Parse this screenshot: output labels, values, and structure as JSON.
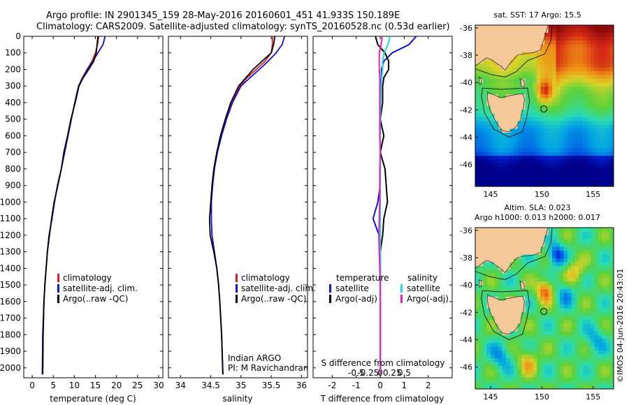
{
  "header": {
    "line1": "Argo profile: IN 2901345_159 28-May-2016 20160601_451 41.933S 150.189E",
    "line2": "Climatology: CARS2009. Satellite-adjusted climatology: synTS_20160528.nc (0.53d earlier)"
  },
  "colors": {
    "climatology": "#e02020",
    "satellite": "#1010e0",
    "argo": "#000000",
    "satellite_cyan": "#20d8e0",
    "argo_magenta": "#e020c0",
    "land": "#f5c89a"
  },
  "depth_axis": {
    "ticks": [
      0,
      100,
      200,
      300,
      400,
      500,
      600,
      700,
      800,
      900,
      1000,
      1100,
      1200,
      1300,
      1400,
      1500,
      1600,
      1700,
      1800,
      1900,
      2000
    ],
    "range": [
      0,
      2060
    ]
  },
  "panels": {
    "temperature": {
      "xlabel": "temperature (deg C)",
      "xticks": [
        0,
        5,
        10,
        15,
        20,
        25,
        30
      ],
      "legend": [
        "climatology",
        "satellite-adj. clim.",
        "Argo(..raw -QC)"
      ]
    },
    "salinity": {
      "xlabel": "salinity",
      "xticks": [
        34,
        34.5,
        35,
        35.5,
        36
      ],
      "legend": [
        "climatology",
        "satellite-adj. clim.",
        "Argo(..raw -QC)"
      ],
      "note1": "Indian ARGO",
      "note2": "PI: M Ravichandran"
    },
    "difference": {
      "xlabel": "T difference from climatology",
      "s_label": "S difference from climatology",
      "t_ticks": [
        -2,
        -1,
        0,
        1,
        2
      ],
      "s_ticks": [
        "-0.5",
        "-0.25",
        "0",
        "0.25",
        "0.5"
      ],
      "legend_temperature_title": "temperature",
      "legend_salinity_title": "salinity",
      "legend_temperature": [
        "satellite",
        "Argo(-adj)"
      ],
      "legend_salinity": [
        "satellite",
        "Argo(-adj)"
      ]
    }
  },
  "maps": {
    "sst": {
      "title": "sat. SST: 17 Argo: 15.5",
      "lat_ticks": [
        "-36",
        "-38",
        "-40",
        "-42",
        "-44",
        "-46"
      ],
      "lon_ticks": [
        "145",
        "150",
        "155"
      ]
    },
    "sla": {
      "title1": "Altim. SLA: 0.023",
      "title2": "Argo h1000: 0.013 h2000: 0.017",
      "lat_ticks": [
        "-36",
        "-38",
        "-40",
        "-42",
        "-44",
        "-46"
      ],
      "lon_ticks": [
        "145",
        "150",
        "155"
      ]
    },
    "float_position": {
      "lon": 150.189,
      "lat": -41.933
    }
  },
  "credit": "©IMOS 04-Jun-2016 20:43:01",
  "chart_data": [
    {
      "type": "line",
      "title": "",
      "xlabel": "temperature (deg C)",
      "ylabel": "",
      "xlim": [
        -2,
        31
      ],
      "ylim": [
        2060,
        0
      ],
      "series": [
        {
          "name": "climatology",
          "x": [
            15.8,
            15.5,
            15.0,
            14.2,
            13.0,
            11.9,
            11.0,
            10.1,
            9.3,
            8.5,
            7.7,
            6.9,
            6.0,
            5.3,
            4.7,
            4.0,
            3.6,
            3.3,
            3.0,
            2.8,
            2.6,
            2.5
          ],
          "y": [
            0,
            50,
            100,
            150,
            200,
            250,
            300,
            400,
            500,
            600,
            700,
            800,
            900,
            1000,
            1100,
            1200,
            1300,
            1400,
            1500,
            1600,
            1800,
            2040
          ]
        },
        {
          "name": "satellite-adj. clim.",
          "x": [
            17.3,
            16.8,
            15.6,
            14.4,
            13.1,
            12.0,
            11.0,
            10.1,
            9.3,
            8.5,
            7.7,
            6.9,
            6.0,
            5.3,
            4.7,
            4.0,
            3.6,
            3.3,
            3.0,
            2.8,
            2.5,
            2.4
          ],
          "y": [
            0,
            50,
            100,
            150,
            200,
            250,
            300,
            400,
            500,
            600,
            700,
            800,
            900,
            1000,
            1100,
            1200,
            1300,
            1400,
            1500,
            1600,
            1800,
            2040
          ]
        },
        {
          "name": "Argo(..raw -QC)",
          "x": [
            15.6,
            15.4,
            15.2,
            14.6,
            13.4,
            12.1,
            11.1,
            10.2,
            9.2,
            8.4,
            7.5,
            6.9,
            6.1,
            5.2,
            4.6,
            4.1,
            3.6,
            3.3,
            3.0,
            2.8,
            2.6,
            2.5
          ],
          "y": [
            0,
            50,
            100,
            150,
            200,
            250,
            300,
            400,
            500,
            600,
            700,
            800,
            900,
            1000,
            1100,
            1200,
            1300,
            1400,
            1500,
            1600,
            1800,
            2040
          ]
        }
      ]
    },
    {
      "type": "line",
      "title": "",
      "xlabel": "salinity",
      "ylabel": "",
      "xlim": [
        33.8,
        36.1
      ],
      "ylim": [
        2060,
        0
      ],
      "series": [
        {
          "name": "climatology",
          "x": [
            35.52,
            35.52,
            35.5,
            35.4,
            35.25,
            35.1,
            34.98,
            34.85,
            34.75,
            34.67,
            34.6,
            34.56,
            34.53,
            34.51,
            34.51,
            34.52,
            34.56,
            34.6,
            34.63,
            34.65,
            34.68,
            34.7
          ],
          "y": [
            0,
            50,
            100,
            150,
            200,
            250,
            300,
            400,
            500,
            600,
            700,
            800,
            900,
            1000,
            1100,
            1200,
            1300,
            1400,
            1500,
            1600,
            1800,
            2040
          ]
        },
        {
          "name": "satellite-adj. clim.",
          "x": [
            35.72,
            35.68,
            35.58,
            35.45,
            35.3,
            35.15,
            35.0,
            34.86,
            34.76,
            34.68,
            34.61,
            34.56,
            34.53,
            34.51,
            34.51,
            34.52,
            34.56,
            34.6,
            34.63,
            34.65,
            34.68,
            34.7
          ],
          "y": [
            0,
            50,
            100,
            150,
            200,
            250,
            300,
            400,
            500,
            600,
            700,
            800,
            900,
            1000,
            1100,
            1200,
            1300,
            1400,
            1500,
            1600,
            1800,
            2040
          ]
        },
        {
          "name": "Argo(..raw -QC)",
          "x": [
            35.56,
            35.54,
            35.5,
            35.35,
            35.2,
            35.08,
            34.96,
            34.83,
            34.74,
            34.66,
            34.6,
            34.55,
            34.52,
            34.5,
            34.48,
            34.49,
            34.55,
            34.6,
            34.63,
            34.65,
            34.68,
            34.7
          ],
          "y": [
            0,
            50,
            100,
            150,
            200,
            250,
            300,
            400,
            500,
            600,
            700,
            800,
            900,
            1000,
            1100,
            1200,
            1300,
            1400,
            1500,
            1600,
            1800,
            2040
          ]
        }
      ]
    },
    {
      "type": "line",
      "title": "",
      "xlabel": "T difference from climatology",
      "ylabel": "",
      "xlim": [
        -2.8,
        3.0
      ],
      "ylim": [
        2060,
        0
      ],
      "series": [
        {
          "name": "temperature satellite",
          "x": [
            1.5,
            1.2,
            0.5,
            0.15,
            0.05,
            0.05,
            0,
            0,
            0,
            0,
            0,
            0,
            0,
            -0.1,
            -0.3,
            -0.05,
            0,
            0,
            0,
            0,
            0,
            0
          ],
          "y": [
            0,
            50,
            100,
            150,
            200,
            250,
            300,
            400,
            500,
            600,
            700,
            800,
            900,
            1000,
            1100,
            1200,
            1300,
            1400,
            1500,
            1600,
            1800,
            2040
          ]
        },
        {
          "name": "temperature Argo(-adj)",
          "x": [
            -0.2,
            -0.1,
            0.2,
            0.35,
            0.35,
            0.15,
            0.1,
            0.1,
            0,
            0.15,
            0,
            0.2,
            0.25,
            0.3,
            0.15,
            0.1,
            0,
            0,
            0,
            0,
            0,
            0
          ],
          "y": [
            0,
            50,
            100,
            150,
            200,
            250,
            300,
            400,
            500,
            600,
            700,
            800,
            900,
            1000,
            1100,
            1200,
            1300,
            1400,
            1500,
            1600,
            1800,
            2040
          ]
        },
        {
          "name": "salinity satellite",
          "x": [
            0.2,
            0.16,
            0.08,
            0.05,
            0.05,
            0.03,
            0.02,
            0.01,
            0,
            0,
            0,
            0,
            0,
            0,
            0,
            0,
            0,
            0,
            0,
            0,
            0,
            0
          ],
          "y": [
            0,
            50,
            100,
            150,
            200,
            250,
            300,
            400,
            500,
            600,
            700,
            800,
            900,
            1000,
            1100,
            1200,
            1300,
            1400,
            1500,
            1600,
            1800,
            2040
          ]
        },
        {
          "name": "salinity Argo(-adj)",
          "x": [
            0.04,
            0.02,
            -0.02,
            -0.02,
            -0.02,
            -0.01,
            -0.01,
            -0.01,
            -0.01,
            -0.01,
            0,
            -0.01,
            -0.01,
            -0.01,
            -0.02,
            -0.03,
            -0.02,
            -0.01,
            0,
            0,
            0,
            0
          ],
          "y": [
            0,
            50,
            100,
            150,
            200,
            250,
            300,
            400,
            500,
            600,
            700,
            800,
            900,
            1000,
            1100,
            1200,
            1300,
            1400,
            1500,
            1600,
            1800,
            2040
          ]
        }
      ]
    }
  ]
}
